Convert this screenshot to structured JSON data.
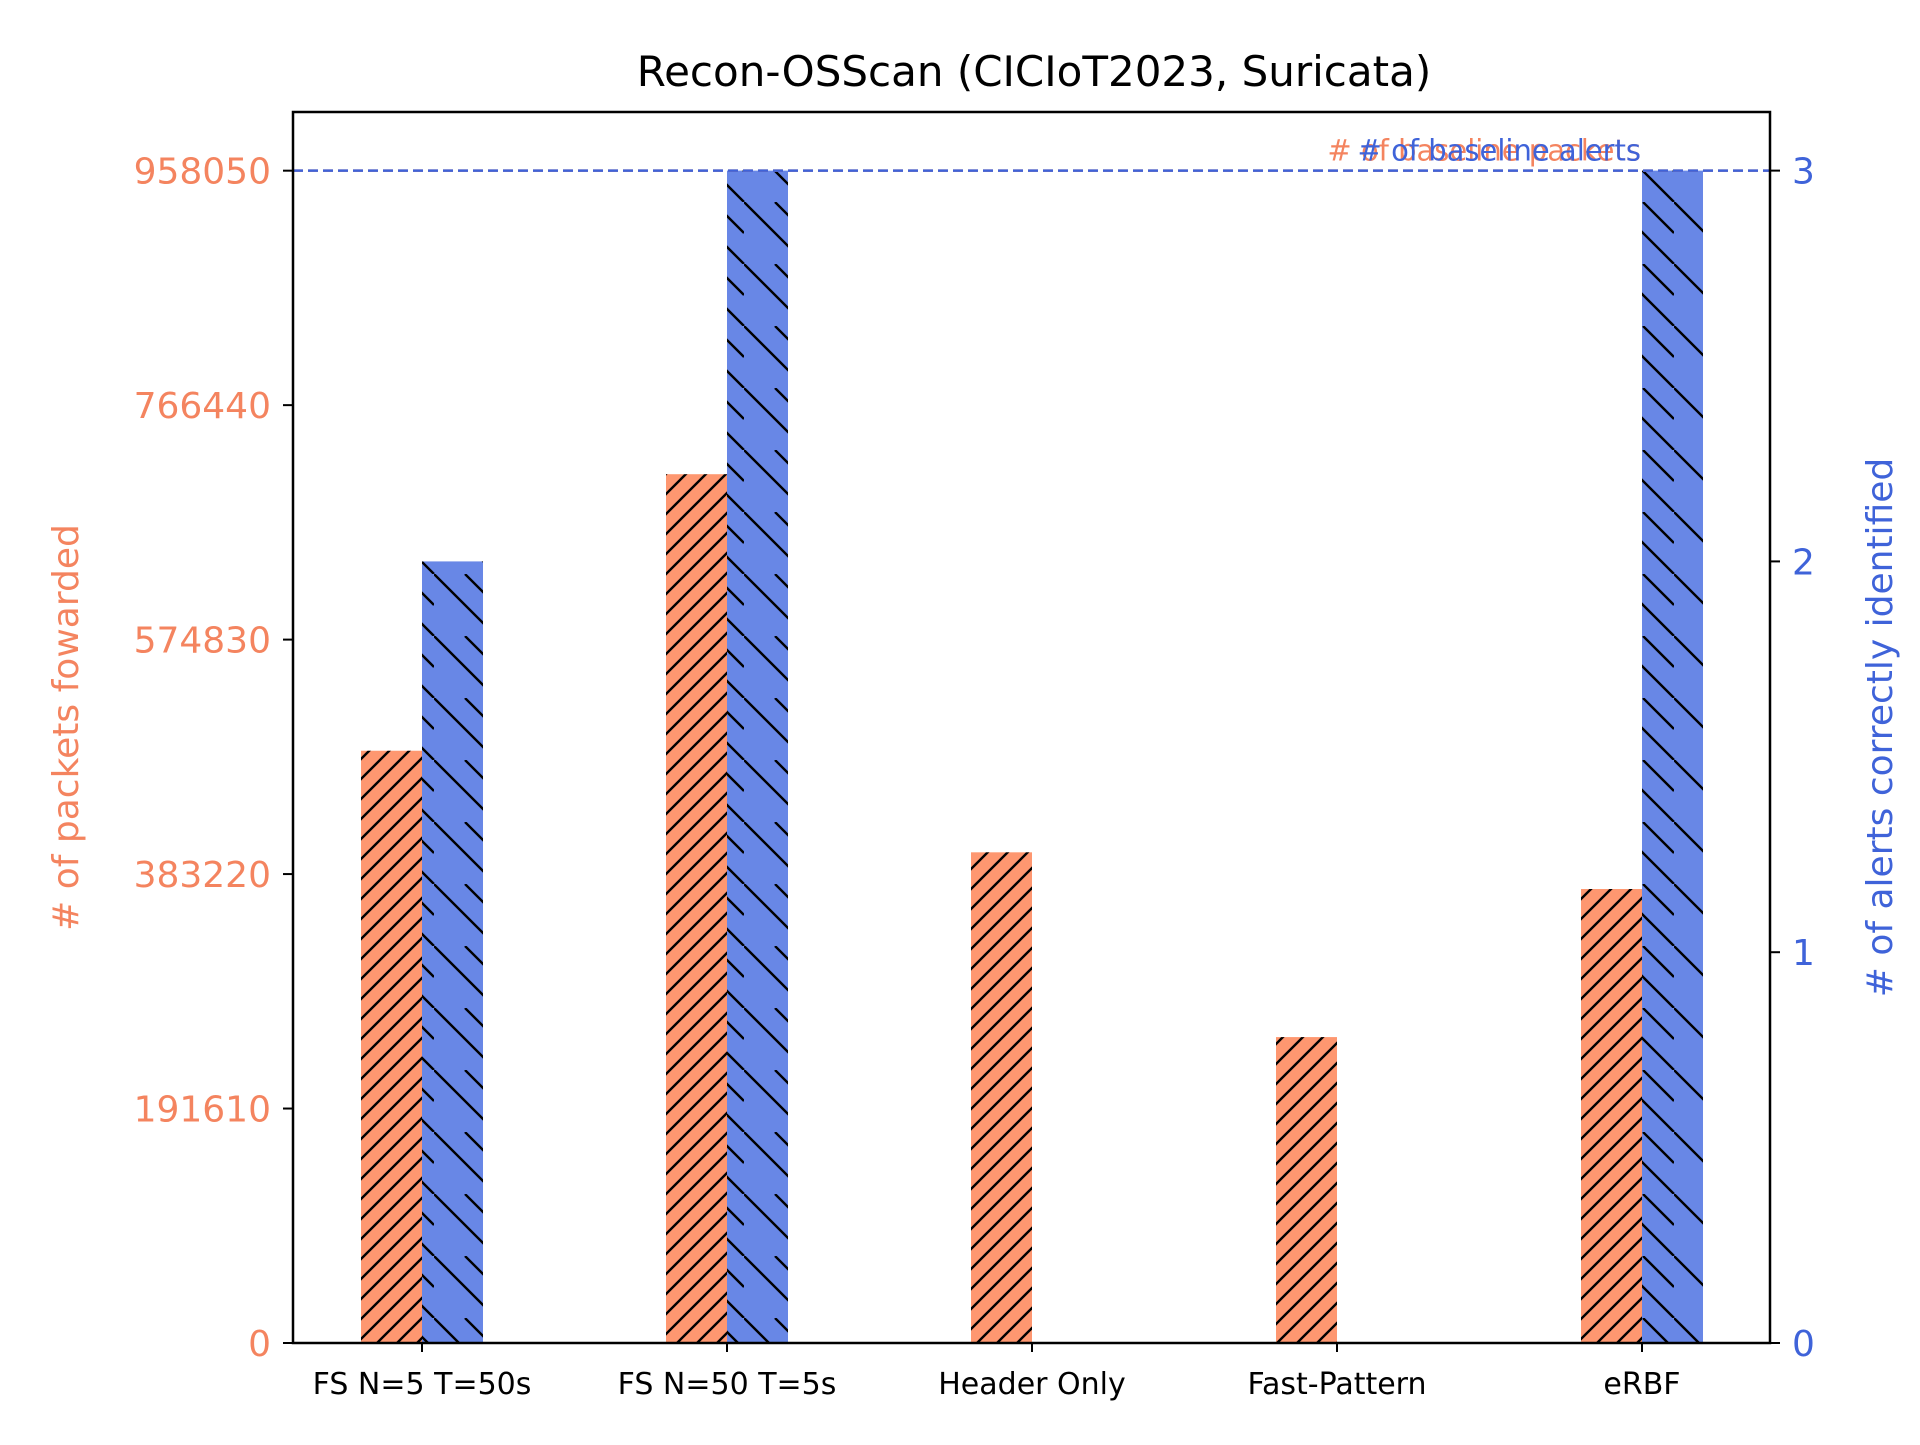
{
  "chart_data": {
    "type": "bar",
    "title": "Recon-OSScan (CICIoT2023, Suricata)",
    "categories": [
      "FS N=5 T=50s",
      "FS N=50 T=5s",
      "Header Only",
      "Fast-Pattern",
      "eRBF"
    ],
    "left_axis": {
      "label": "# of packets fowarded",
      "ticks": [
        0,
        191610,
        383220,
        574830,
        766440,
        958050
      ],
      "tick_labels": [
        "0",
        "191610",
        "383220",
        "574830",
        "766440",
        "958050"
      ],
      "ylim": [
        0,
        1006000
      ],
      "color": "#f4845f"
    },
    "right_axis": {
      "label": "# of alerts correctly identified",
      "ticks": [
        0,
        1,
        2,
        3
      ],
      "tick_labels": [
        "0",
        "1",
        "2",
        "3"
      ],
      "ylim": [
        0,
        3.15
      ],
      "color": "#3f63d9"
    },
    "series": [
      {
        "name": "# of packets fowarded",
        "axis": "left",
        "color": "#fe9770",
        "hatch": "forward",
        "values": [
          484000,
          710000,
          401000,
          250000,
          371000
        ]
      },
      {
        "name": "# of alerts correctly identified",
        "axis": "right",
        "color": "#6887e6",
        "hatch": "back",
        "values": [
          2,
          3,
          0,
          0,
          3
        ]
      }
    ],
    "reference_lines": [
      {
        "label": "# of baseline packets",
        "axis": "left",
        "value": 958050,
        "color": "#f4845f"
      },
      {
        "label": "# of baseline alerts",
        "axis": "right",
        "value": 3,
        "color": "#3f63d9"
      }
    ],
    "grid": false
  }
}
